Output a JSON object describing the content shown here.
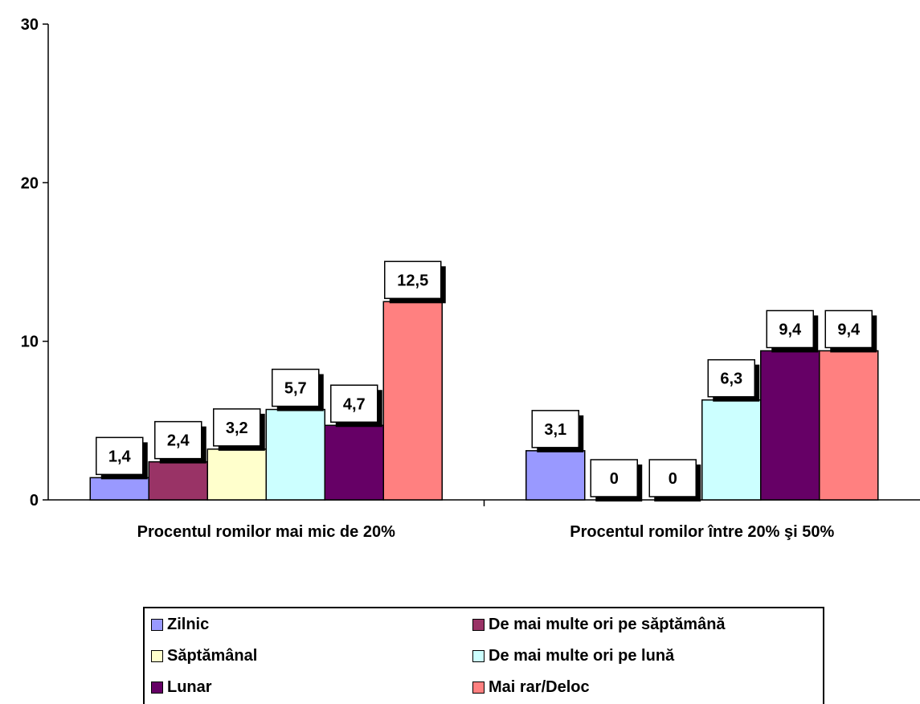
{
  "chart_data": {
    "type": "bar",
    "categories": [
      "Procentul romilor mai mic de 20%",
      "Procentul romilor între 20% şi 50%"
    ],
    "series": [
      {
        "name": "Zilnic",
        "color": "#9999ff",
        "values": [
          1.4,
          3.1
        ],
        "labels": [
          "1,4",
          "3,1"
        ]
      },
      {
        "name": "De mai multe ori pe săptămână",
        "color": "#993366",
        "values": [
          2.4,
          0
        ],
        "labels": [
          "2,4",
          "0"
        ]
      },
      {
        "name": "Săptămânal",
        "color": "#ffffcc",
        "values": [
          3.2,
          0
        ],
        "labels": [
          "3,2",
          "0"
        ]
      },
      {
        "name": "De mai multe ori pe lună",
        "color": "#ccffff",
        "values": [
          5.7,
          6.3
        ],
        "labels": [
          "5,7",
          "6,3"
        ]
      },
      {
        "name": "Lunar",
        "color": "#660066",
        "values": [
          4.7,
          9.4
        ],
        "labels": [
          "4,7",
          "9,4"
        ]
      },
      {
        "name": "Mai rar/Deloc",
        "color": "#ff8080",
        "values": [
          12.5,
          9.4
        ],
        "labels": [
          "12,5",
          "9,4"
        ]
      }
    ],
    "ylim": [
      0,
      30
    ],
    "yticks": [
      0,
      10,
      20,
      30
    ],
    "ytick_labels": [
      "0",
      "10",
      "20",
      "30"
    ],
    "grid": false,
    "legend_position": "bottom"
  }
}
